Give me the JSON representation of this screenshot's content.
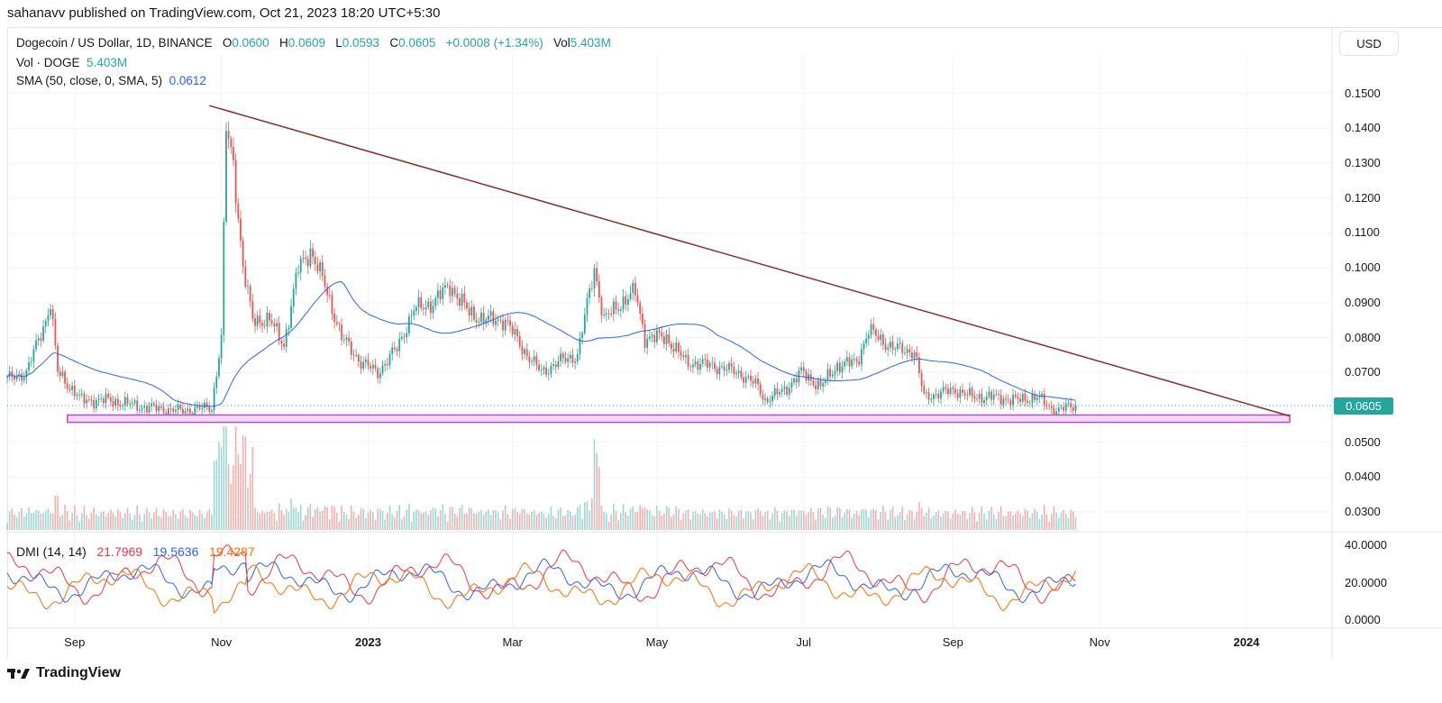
{
  "publisher": "sahanavv published on TradingView.com, Oct 21, 2023 18:20 UTC+5:30",
  "legend": {
    "symbol": "Dogecoin / US Dollar, 1D, BINANCE",
    "o_label": "O",
    "o": "0.0600",
    "h_label": "H",
    "h": "0.0609",
    "l_label": "L",
    "l": "0.0593",
    "c_label": "C",
    "c": "0.0605",
    "change": "+0.0008 (+1.34%)",
    "vol_label": "Vol",
    "vol": "5.403M",
    "vol_ind": "Vol · DOGE",
    "vol_ind_val": "5.403M",
    "sma": "SMA (50, close, 0, SMA, 5)",
    "sma_val": "0.0612",
    "dmi": "DMI (14, 14)",
    "dmi_plus": "21.7969",
    "dmi_minus": "19.5636",
    "dmi_adx": "19.4287"
  },
  "currency": "USD",
  "last_price": "0.0605",
  "footer": "TradingView",
  "colors": {
    "up": "#26a69a",
    "down": "#ef5350",
    "sma": "#2962ff",
    "trend": "#8b2b2b",
    "support": "#ce93d8",
    "dmi_plus": "#f23645",
    "dmi_minus": "#2962ff",
    "adx": "#ff6d00"
  },
  "chart_data": {
    "type": "candlestick",
    "title": "Dogecoin / US Dollar, 1D, BINANCE",
    "start_date": "2022-08-04",
    "close_keypoints_day_price": [
      [
        0,
        0.068
      ],
      [
        8,
        0.07
      ],
      [
        16,
        0.085
      ],
      [
        18,
        0.09
      ],
      [
        21,
        0.07
      ],
      [
        31,
        0.062
      ],
      [
        42,
        0.062
      ],
      [
        57,
        0.06
      ],
      [
        72,
        0.059
      ],
      [
        85,
        0.06
      ],
      [
        89,
        0.08
      ],
      [
        91,
        0.14
      ],
      [
        94,
        0.13
      ],
      [
        98,
        0.1
      ],
      [
        102,
        0.085
      ],
      [
        109,
        0.085
      ],
      [
        115,
        0.078
      ],
      [
        121,
        0.1
      ],
      [
        126,
        0.105
      ],
      [
        132,
        0.095
      ],
      [
        139,
        0.08
      ],
      [
        147,
        0.073
      ],
      [
        154,
        0.07
      ],
      [
        162,
        0.077
      ],
      [
        169,
        0.088
      ],
      [
        177,
        0.09
      ],
      [
        184,
        0.095
      ],
      [
        192,
        0.087
      ],
      [
        199,
        0.085
      ],
      [
        207,
        0.085
      ],
      [
        214,
        0.077
      ],
      [
        222,
        0.07
      ],
      [
        229,
        0.073
      ],
      [
        237,
        0.075
      ],
      [
        244,
        0.1
      ],
      [
        248,
        0.085
      ],
      [
        255,
        0.09
      ],
      [
        261,
        0.093
      ],
      [
        265,
        0.08
      ],
      [
        274,
        0.08
      ],
      [
        282,
        0.073
      ],
      [
        293,
        0.072
      ],
      [
        304,
        0.07
      ],
      [
        312,
        0.066
      ],
      [
        315,
        0.062
      ],
      [
        323,
        0.065
      ],
      [
        330,
        0.07
      ],
      [
        338,
        0.066
      ],
      [
        345,
        0.072
      ],
      [
        353,
        0.073
      ],
      [
        358,
        0.082
      ],
      [
        368,
        0.077
      ],
      [
        377,
        0.076
      ],
      [
        381,
        0.063
      ],
      [
        387,
        0.064
      ],
      [
        394,
        0.065
      ],
      [
        401,
        0.063
      ],
      [
        409,
        0.063
      ],
      [
        420,
        0.062
      ],
      [
        428,
        0.063
      ],
      [
        435,
        0.059
      ],
      [
        444,
        0.0605
      ]
    ],
    "price_ticks": [
      "0.1500",
      "0.1400",
      "0.1300",
      "0.1200",
      "0.1100",
      "0.1000",
      "0.0900",
      "0.0800",
      "0.0700",
      "0.0500",
      "0.0400",
      "0.0300"
    ],
    "price_tick_values": [
      0.15,
      0.14,
      0.13,
      0.12,
      0.11,
      0.1,
      0.09,
      0.08,
      0.07,
      0.05,
      0.04,
      0.03
    ],
    "dmi_ticks": [
      "40.0000",
      "20.0000",
      "0.0000"
    ],
    "dmi_tick_values": [
      40,
      20,
      0
    ],
    "x_ticks": [
      "Sep",
      "Nov",
      "2023",
      "Mar",
      "May",
      "Jul",
      "Sep",
      "Nov",
      "2024"
    ],
    "x_tick_days": [
      28,
      89,
      150,
      210,
      270,
      331,
      393,
      454,
      515
    ],
    "trendline": {
      "from": {
        "day": 84,
        "price": 0.1465
      },
      "to": {
        "day": 533,
        "price": 0.0575
      }
    },
    "support_zone": {
      "from_day": 25,
      "to_day": 533,
      "low": 0.0557,
      "high": 0.0578
    },
    "sma_period": 50
  }
}
